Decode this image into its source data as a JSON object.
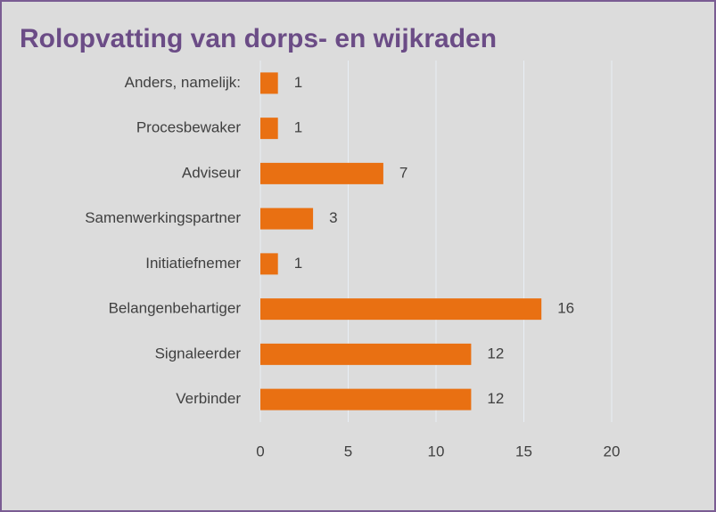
{
  "chart_data": {
    "type": "bar",
    "orientation": "horizontal",
    "title": "Rolopvatting van dorps- en wijkraden",
    "categories": [
      "Anders, namelijk:",
      "Procesbewaker",
      "Adviseur",
      "Samenwerkingspartner",
      "Initiatiefnemer",
      "Belangenbehartiger",
      "Signaleerder",
      "Verbinder"
    ],
    "values": [
      1,
      1,
      7,
      3,
      1,
      16,
      12,
      12
    ],
    "color": "#e97012",
    "xlim": [
      0,
      20
    ],
    "xticks": [
      0,
      5,
      10,
      15,
      20
    ],
    "grid": true
  }
}
